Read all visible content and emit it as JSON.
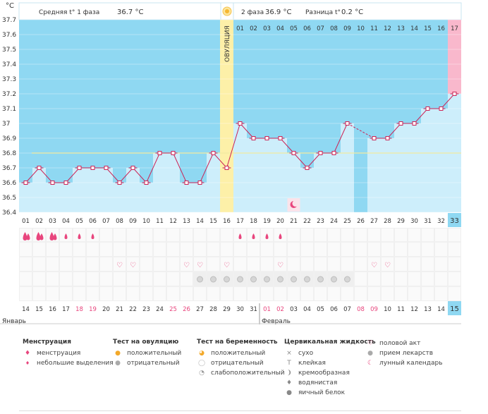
{
  "chart_data": {
    "type": "line",
    "unit_label": "°C",
    "header": {
      "phase1_label": "Средняя t° 1 фаза",
      "phase1_value": "36.7 °C",
      "phase2_label": "2 фаза",
      "phase2_value": "36.9 °C",
      "diff_label": "Разница t°",
      "diff_value": "0.2 °C"
    },
    "ylim": [
      36.4,
      37.7
    ],
    "yticks": [
      "36.4",
      "36.5",
      "36.6",
      "36.7",
      "36.8",
      "36.9",
      "37",
      "37.1",
      "37.2",
      "37.3",
      "37.4",
      "37.5",
      "37.6",
      "37.7"
    ],
    "ovulation_label": "ОВУЛЯЦИЯ",
    "coverline": 36.8,
    "cycle_days": [
      "01",
      "02",
      "03",
      "04",
      "05",
      "06",
      "07",
      "08",
      "09",
      "10",
      "11",
      "12",
      "13",
      "14",
      "15",
      "16",
      "17",
      "18",
      "19",
      "20",
      "21",
      "22",
      "23",
      "24",
      "25",
      "26",
      "27",
      "28",
      "29",
      "30",
      "31",
      "32",
      "33"
    ],
    "luteal_days": [
      "01",
      "02",
      "03",
      "04",
      "05",
      "06",
      "07",
      "08",
      "09",
      "10",
      "11",
      "12",
      "13",
      "14",
      "15",
      "16",
      "17"
    ],
    "temps": [
      36.6,
      36.7,
      36.6,
      36.6,
      36.7,
      36.7,
      36.7,
      36.6,
      36.7,
      36.6,
      36.8,
      36.8,
      36.6,
      36.6,
      36.8,
      36.7,
      37.0,
      36.9,
      36.9,
      36.9,
      36.8,
      36.7,
      36.8,
      36.8,
      37.0,
      null,
      36.9,
      36.9,
      37.0,
      37.0,
      37.1,
      37.1,
      37.2
    ],
    "calendar_dates": [
      "14",
      "15",
      "16",
      "17",
      "18",
      "19",
      "20",
      "21",
      "22",
      "23",
      "24",
      "25",
      "26",
      "27",
      "28",
      "29",
      "30",
      "31",
      "01",
      "02",
      "03",
      "04",
      "05",
      "06",
      "07",
      "08",
      "09",
      "10",
      "11",
      "12",
      "13",
      "14",
      "15"
    ],
    "month_start": "Январь",
    "month_next": "Февраль",
    "menstruation_heavy_days": [
      1,
      2,
      3
    ],
    "menstruation_light_days": [
      4,
      5,
      6,
      17,
      18,
      19,
      20
    ],
    "intercourse_days": [
      8,
      9,
      13,
      14,
      16,
      20,
      27,
      28
    ],
    "pills_days": [
      14,
      15,
      16,
      17,
      18,
      19,
      20,
      21,
      22,
      23,
      24,
      25
    ],
    "moon_day": 21
  },
  "legend": {
    "menstruation": {
      "title": "Менструация",
      "items": [
        "менструация",
        "небольшие выделения"
      ]
    },
    "ovulation_test": {
      "title": "Тест на овуляцию",
      "items": [
        "положительный",
        "отрицательный"
      ]
    },
    "pregnancy_test": {
      "title": "Тест на беременность",
      "items": [
        "положительный",
        "отрицательный",
        "слабоположительный"
      ]
    },
    "cervical_fluid": {
      "title": "Цервикальная жидкость",
      "items": [
        "сухо",
        "клейкая",
        "кремообразная",
        "водянистая",
        "яичный белок"
      ]
    },
    "other": {
      "items": [
        "половой акт",
        "прием лекарств",
        "лунный календарь"
      ]
    }
  },
  "colors": {
    "sky": "#8fd8f2",
    "bar": "#cdeefb",
    "ovulation": "#fdf0a8",
    "pink": "#f9b8cc",
    "line": "#cc2255",
    "accent": "#e8457d",
    "highlight": "#8fd8f2"
  }
}
